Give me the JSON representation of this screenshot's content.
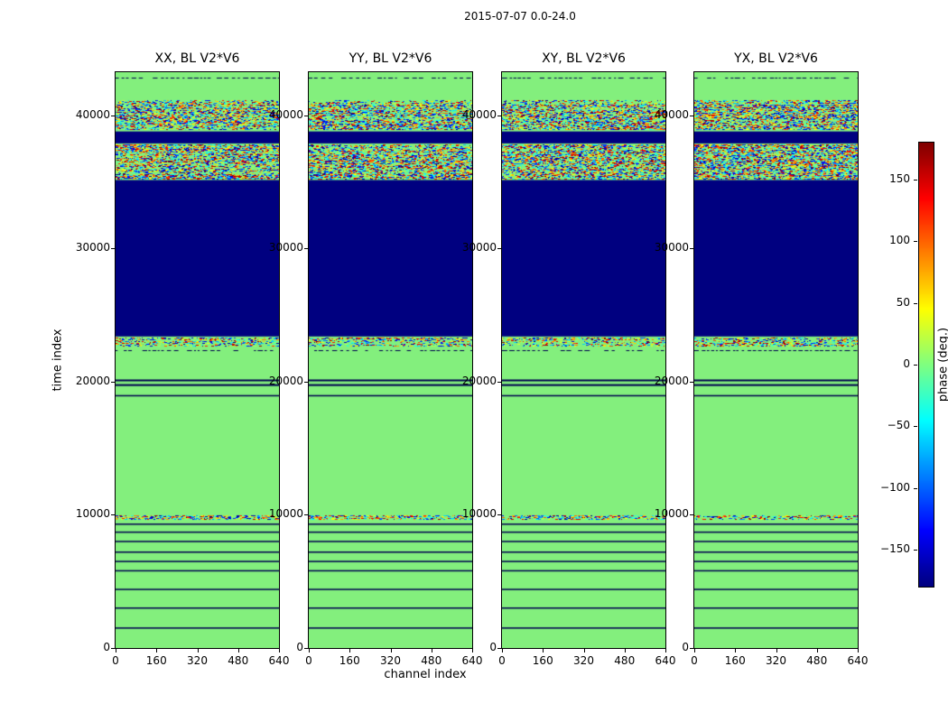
{
  "figure": {
    "title": "2015-07-07 0.0-24.0",
    "xlabel": "channel index",
    "ylabel": "time index",
    "colorbar_label": "phase (deg.)"
  },
  "colors": {
    "background": "#ffffff",
    "green_zero_phase": "#83EF7D",
    "navy_min_phase": "#000080",
    "line": "#000050",
    "axis": "#000000"
  },
  "chart_data": {
    "type": "heatmap",
    "title": "2015-07-07 0.0-24.0",
    "xlabel": "channel index",
    "ylabel": "time index",
    "colormap": "jet",
    "x_range": [
      0,
      640
    ],
    "y_range": [
      0,
      43250
    ],
    "x_ticks": [
      0,
      160,
      320,
      480,
      640
    ],
    "y_ticks": [
      0,
      10000,
      20000,
      30000,
      40000
    ],
    "colorbar": {
      "label": "phase (deg.)",
      "min": -180,
      "max": 180,
      "tick_values": [
        150,
        100,
        50,
        0,
        -50,
        -100,
        -150
      ],
      "tick_labels": [
        "150",
        "100",
        "50",
        "0",
        "−50",
        "−100",
        "−150"
      ]
    },
    "panels": [
      {
        "id": "xx",
        "title": "XX, BL V2*V6"
      },
      {
        "id": "yy",
        "title": "YY, BL V2*V6"
      },
      {
        "id": "xy",
        "title": "XY, BL V2*V6"
      },
      {
        "id": "yx",
        "title": "YX, BL V2*V6"
      }
    ],
    "background_value_deg": 0,
    "bands": [
      {
        "kind": "dashed",
        "t": 42850
      },
      {
        "kind": "speckle",
        "t_top": 41100,
        "t_bot": 40850,
        "density": 0.5
      },
      {
        "kind": "noise",
        "t_top": 40750,
        "t_bot": 39000,
        "density": 0.7
      },
      {
        "kind": "navy",
        "t_top": 38800,
        "t_bot": 37900,
        "value_deg": -180
      },
      {
        "kind": "noise",
        "t_top": 37800,
        "t_bot": 35300,
        "density": 0.75
      },
      {
        "kind": "navy",
        "t_top": 35150,
        "t_bot": 23400,
        "value_deg": -180
      },
      {
        "kind": "noise",
        "t_top": 23300,
        "t_bot": 22750,
        "density": 0.45
      },
      {
        "kind": "dashed",
        "t": 22400
      },
      {
        "kind": "line",
        "t": 20100,
        "w": 2
      },
      {
        "kind": "line",
        "t": 19750,
        "w": 2
      },
      {
        "kind": "line",
        "t": 18950,
        "w": 1.5
      },
      {
        "kind": "speckle",
        "t_top": 9950,
        "t_bot": 9700,
        "density": 0.6
      },
      {
        "kind": "line",
        "t": 9300,
        "w": 1.5
      },
      {
        "kind": "line",
        "t": 8700,
        "w": 1.5
      },
      {
        "kind": "line",
        "t": 8000,
        "w": 1.5
      },
      {
        "kind": "line",
        "t": 7200,
        "w": 1.5
      },
      {
        "kind": "line",
        "t": 6500,
        "w": 1.5
      },
      {
        "kind": "line",
        "t": 5800,
        "w": 1.5
      },
      {
        "kind": "line",
        "t": 4400,
        "w": 1.5
      },
      {
        "kind": "line",
        "t": 3000,
        "w": 1.5
      },
      {
        "kind": "line",
        "t": 1500,
        "w": 1.5
      }
    ]
  }
}
